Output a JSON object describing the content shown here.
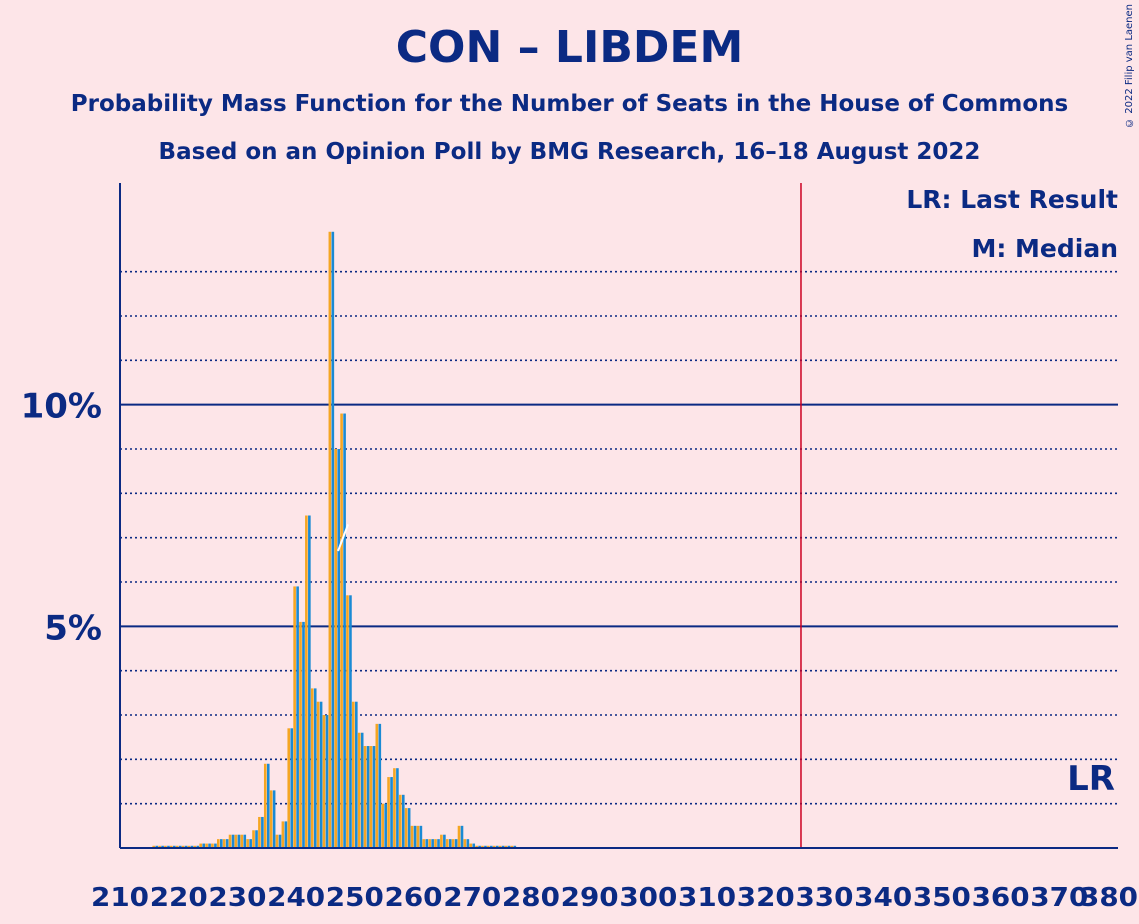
{
  "title": "CON – LIBDEM",
  "subtitle": "Probability Mass Function for the Number of Seats in the House of Commons",
  "subtitle2": "Based on an Opinion Poll by BMG Research, 16–18 August 2022",
  "copyright": "© 2022 Filip van Laenen",
  "legend": {
    "last_result": "LR: Last Result",
    "median": "M: Median"
  },
  "lr_marker": "LR",
  "colors": {
    "background": "#fde5e8",
    "axis": "#0b2a83",
    "bar_orange": "#f5a623",
    "bar_blue": "#1a8ad4",
    "majority_line": "#cc0022"
  },
  "chart_data": {
    "type": "bar",
    "x_range": [
      210,
      380
    ],
    "ylim": [
      0,
      15
    ],
    "y_unit": "%",
    "y_tick_labels": [
      {
        "value": 5,
        "label": "5%"
      },
      {
        "value": 10,
        "label": "10%"
      }
    ],
    "y_gridlines_dotted": [
      1,
      2,
      3,
      4,
      6,
      7,
      8,
      9,
      11,
      12,
      13
    ],
    "y_gridlines_solid": [
      5,
      10
    ],
    "x_ticks": [
      {
        "value": 210,
        "label": "210"
      },
      {
        "value": 220,
        "label": "220"
      },
      {
        "value": 230,
        "label": "230"
      },
      {
        "value": 240,
        "label": "240"
      },
      {
        "value": 250,
        "label": "250"
      },
      {
        "value": 260,
        "label": "260"
      },
      {
        "value": 270,
        "label": "270"
      },
      {
        "value": 280,
        "label": "280"
      },
      {
        "value": 290,
        "label": "290"
      },
      {
        "value": 300,
        "label": "300"
      },
      {
        "value": 310,
        "label": "310"
      },
      {
        "value": 320,
        "label": "320"
      },
      {
        "value": 330,
        "label": "330"
      },
      {
        "value": 340,
        "label": "340"
      },
      {
        "value": 350,
        "label": "350"
      },
      {
        "value": 360,
        "label": "360"
      },
      {
        "value": 370,
        "label": "370"
      },
      {
        "value": 380,
        "label": "380"
      }
    ],
    "majority_seats": 326,
    "median_seats": 248,
    "last_result_seats": 376,
    "seats": [
      216,
      217,
      218,
      219,
      220,
      221,
      222,
      223,
      224,
      225,
      226,
      227,
      228,
      229,
      230,
      231,
      232,
      233,
      234,
      235,
      236,
      237,
      238,
      239,
      240,
      241,
      242,
      243,
      244,
      245,
      246,
      247,
      248,
      249,
      250,
      251,
      252,
      253,
      254,
      255,
      256,
      257,
      258,
      259,
      260,
      261,
      262,
      263,
      264,
      265,
      266,
      267,
      268,
      269,
      270,
      271,
      272,
      273,
      274,
      275,
      276,
      277,
      278,
      279,
      280
    ],
    "series": [
      {
        "name": "Orange",
        "values": [
          0.05,
          0.05,
          0.05,
          0.05,
          0.05,
          0.05,
          0.05,
          0.05,
          0.1,
          0.1,
          0.1,
          0.2,
          0.2,
          0.3,
          0.3,
          0.3,
          0.2,
          0.4,
          0.7,
          1.9,
          1.3,
          0.3,
          0.6,
          2.7,
          5.9,
          5.1,
          7.5,
          3.6,
          3.3,
          3.0,
          13.9,
          9.0,
          9.8,
          5.7,
          3.3,
          2.6,
          2.3,
          2.3,
          2.8,
          1.0,
          1.6,
          1.8,
          1.2,
          0.9,
          0.5,
          0.5,
          0.2,
          0.2,
          0.2,
          0.3,
          0.2,
          0.2,
          0.5,
          0.2,
          0.1,
          0.05,
          0.05,
          0.05,
          0.05,
          0.05,
          0.05,
          0.05,
          0.02,
          0.02,
          0.02
        ]
      },
      {
        "name": "Blue",
        "values": [
          0.05,
          0.05,
          0.05,
          0.05,
          0.05,
          0.05,
          0.05,
          0.05,
          0.1,
          0.1,
          0.1,
          0.2,
          0.2,
          0.3,
          0.3,
          0.3,
          0.2,
          0.4,
          0.7,
          1.9,
          1.3,
          0.3,
          0.6,
          2.7,
          5.9,
          5.1,
          7.5,
          3.6,
          3.3,
          3.0,
          13.9,
          9.0,
          9.8,
          5.7,
          3.3,
          2.6,
          2.3,
          2.3,
          2.8,
          1.0,
          1.6,
          1.8,
          1.2,
          0.9,
          0.5,
          0.5,
          0.2,
          0.2,
          0.2,
          0.3,
          0.2,
          0.2,
          0.5,
          0.2,
          0.1,
          0.05,
          0.05,
          0.05,
          0.05,
          0.05,
          0.05,
          0.05,
          0.02,
          0.02,
          0.02
        ]
      }
    ]
  }
}
